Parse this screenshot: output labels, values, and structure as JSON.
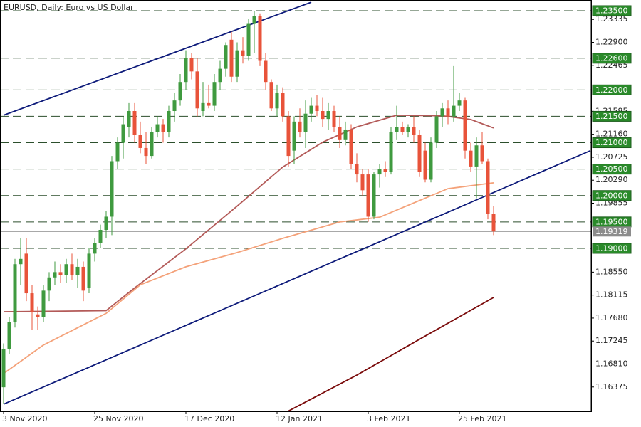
{
  "chart_data": {
    "type": "candlestick",
    "title": "EURUSD, Daily:  Euro vs US Dollar",
    "categories": [
      "3 Nov 2020",
      null,
      null,
      null,
      null,
      null,
      null,
      null,
      null,
      null,
      null,
      null,
      null,
      null,
      null,
      null,
      "25 Nov 2020",
      null,
      null,
      null,
      null,
      null,
      null,
      null,
      null,
      null,
      null,
      null,
      null,
      null,
      null,
      null,
      "17 Dec 2020",
      null,
      null,
      null,
      null,
      null,
      null,
      null,
      null,
      null,
      null,
      null,
      null,
      null,
      null,
      null,
      "12 Jan 2021",
      null,
      null,
      null,
      null,
      null,
      null,
      null,
      null,
      null,
      null,
      null,
      null,
      null,
      null,
      null,
      "3 Feb 2021",
      null,
      null,
      null,
      null,
      null,
      null,
      null,
      null,
      null,
      null,
      null,
      null,
      null,
      null,
      null,
      "25 Feb 2021",
      null,
      null,
      null,
      null,
      null,
      null
    ],
    "open": [
      1.1637,
      1.171,
      1.176,
      1.187,
      1.189,
      1.1815,
      1.1775,
      1.177,
      1.182,
      1.1845,
      1.1855,
      1.185,
      1.187,
      1.185,
      1.1865,
      1.1825,
      1.189,
      1.191,
      1.1935,
      1.196,
      1.2065,
      1.21,
      1.213,
      1.216,
      1.2115,
      1.209,
      1.2075,
      1.212,
      1.2135,
      1.212,
      1.216,
      1.218,
      1.2215,
      1.226,
      1.2235,
      1.216,
      1.2175,
      1.217,
      1.2215,
      1.224,
      1.2295,
      1.2225,
      1.2275,
      1.2265,
      1.2325,
      1.234,
      1.2255,
      1.2215,
      1.2165,
      1.2195,
      1.215,
      1.2085,
      1.214,
      1.212,
      1.2155,
      1.217,
      1.216,
      1.2145,
      1.216,
      1.213,
      1.2105,
      1.2125,
      1.206,
      1.204,
      1.204,
      1.196,
      1.204,
      1.205,
      1.2045,
      1.212,
      1.213,
      1.212,
      1.213,
      1.2115,
      1.2085,
      1.203,
      1.21,
      1.215,
      1.2165,
      1.215,
      1.217,
      1.218,
      1.2085,
      1.2055,
      1.2095,
      1.2065,
      1.1965
    ],
    "high": [
      1.172,
      1.177,
      1.188,
      1.192,
      1.192,
      1.183,
      1.179,
      1.183,
      1.1855,
      1.1875,
      1.187,
      1.188,
      1.189,
      1.188,
      1.1875,
      1.19,
      1.192,
      1.1945,
      1.197,
      1.2075,
      1.211,
      1.215,
      1.2175,
      1.2175,
      1.214,
      1.212,
      1.213,
      1.215,
      1.2145,
      1.217,
      1.2195,
      1.223,
      1.2275,
      1.227,
      1.226,
      1.2215,
      1.221,
      1.223,
      1.2255,
      1.229,
      1.231,
      1.229,
      1.23,
      1.2335,
      1.235,
      1.2345,
      1.227,
      1.222,
      1.221,
      1.2205,
      1.216,
      1.215,
      1.2165,
      1.218,
      1.2185,
      1.219,
      1.2185,
      1.2175,
      1.217,
      1.215,
      1.214,
      1.2135,
      1.208,
      1.205,
      1.205,
      1.2045,
      1.206,
      1.2065,
      1.213,
      1.217,
      1.214,
      1.2135,
      1.215,
      1.2125,
      1.21,
      1.211,
      1.216,
      1.2175,
      1.218,
      1.2245,
      1.2195,
      1.2185,
      1.21,
      1.211,
      1.212,
      1.207,
      1.198
    ],
    "low": [
      1.1605,
      1.17,
      1.175,
      1.183,
      1.18,
      1.1745,
      1.1745,
      1.176,
      1.18,
      1.183,
      1.1835,
      1.1835,
      1.184,
      1.1825,
      1.18,
      1.1815,
      1.1875,
      1.19,
      1.192,
      1.1925,
      1.205,
      1.207,
      1.211,
      1.21,
      1.208,
      1.206,
      1.207,
      1.211,
      1.21,
      1.211,
      1.214,
      1.217,
      1.22,
      1.222,
      1.215,
      1.215,
      1.2165,
      1.216,
      1.22,
      1.2225,
      1.2215,
      1.2215,
      1.225,
      1.2255,
      1.227,
      1.2245,
      1.22,
      1.216,
      1.215,
      1.214,
      1.2055,
      1.206,
      1.211,
      1.209,
      1.214,
      1.215,
      1.213,
      1.2125,
      1.212,
      1.209,
      1.2095,
      1.205,
      1.2025,
      1.2,
      1.195,
      1.1955,
      1.2015,
      1.2035,
      1.204,
      1.2105,
      1.2115,
      1.211,
      1.21,
      1.2035,
      1.2025,
      1.2025,
      1.209,
      1.213,
      1.2135,
      1.214,
      1.216,
      1.207,
      1.2045,
      1.1995,
      1.206,
      1.1955,
      1.1925
    ],
    "close": [
      1.171,
      1.176,
      1.187,
      1.188,
      1.1815,
      1.178,
      1.177,
      1.182,
      1.1845,
      1.1855,
      1.185,
      1.187,
      1.185,
      1.1865,
      1.182,
      1.189,
      1.191,
      1.1935,
      1.196,
      1.2065,
      1.21,
      1.2135,
      1.216,
      1.2115,
      1.209,
      1.2075,
      1.212,
      1.2135,
      1.212,
      1.216,
      1.218,
      1.2215,
      1.226,
      1.2235,
      1.2165,
      1.2175,
      1.217,
      1.2215,
      1.224,
      1.2285,
      1.2225,
      1.2275,
      1.2265,
      1.2325,
      1.234,
      1.2255,
      1.2215,
      1.2165,
      1.2195,
      1.215,
      1.2075,
      1.214,
      1.212,
      1.2155,
      1.217,
      1.216,
      1.2145,
      1.216,
      1.213,
      1.2105,
      1.2125,
      1.206,
      1.204,
      1.201,
      1.196,
      1.204,
      1.205,
      1.2045,
      1.212,
      1.213,
      1.212,
      1.213,
      1.2115,
      1.2045,
      1.203,
      1.21,
      1.215,
      1.2165,
      1.215,
      1.217,
      1.218,
      1.2085,
      1.2055,
      1.2095,
      1.2065,
      1.1965,
      1.1932
    ],
    "up_color": "#3f9a3f",
    "down_color": "#e8533a",
    "ylim": [
      1.15914,
      1.23702
    ],
    "yticks": [
      1.23335,
      {
        "value": 1.229,
        "label": "1.22900"
      },
      1.22465,
      1.21595,
      {
        "value": 1.2116,
        "label": "1.21160"
      },
      1.20725,
      {
        "value": 1.2029,
        "label": "1.20290"
      },
      1.19855,
      {
        "value": 1.1855,
        "label": "1.18550"
      },
      1.18115,
      {
        "value": 1.1768,
        "label": "1.17680"
      },
      1.17245,
      {
        "value": 1.1681,
        "label": "1.16810"
      },
      1.16375
    ],
    "levels": [
      {
        "value": 1.235,
        "label": "1.23500"
      },
      {
        "value": 1.226,
        "label": "1.22600"
      },
      {
        "value": 1.22,
        "label": "1.22000"
      },
      {
        "value": 1.215,
        "label": "1.21500"
      },
      {
        "value": 1.21,
        "label": "1.21000"
      },
      {
        "value": 1.205,
        "label": "1.20500"
      },
      {
        "value": 1.2,
        "label": "1.20000"
      },
      {
        "value": 1.195,
        "label": "1.19500"
      },
      {
        "value": 1.19,
        "label": "1.19000"
      }
    ],
    "level_color": "#2a8a2a",
    "current_price": 1.19319,
    "current_price_color": "#8c8c8c",
    "lines": [
      {
        "color": "#b35a58",
        "x": [
          0,
          18,
          23,
          32,
          41,
          49,
          56,
          62,
          69,
          77,
          82,
          86
        ],
        "values": [
          1.178,
          1.1782,
          1.1825,
          1.1899,
          1.198,
          1.2054,
          1.2101,
          1.213,
          1.2152,
          1.2151,
          1.2144,
          1.2128
        ]
      },
      {
        "color": "#f4a27a",
        "x": [
          0,
          7,
          18,
          24,
          32,
          41,
          49,
          59,
          66,
          72,
          78,
          86
        ],
        "values": [
          1.1663,
          1.1717,
          1.1777,
          1.1831,
          1.1865,
          1.1892,
          1.1919,
          1.195,
          1.1959,
          1.1986,
          1.2013,
          1.2024
        ]
      },
      {
        "color": "#7a0a0a",
        "x": [
          50,
          62,
          74,
          86
        ],
        "values": [
          1.1592,
          1.166,
          1.1734,
          1.1807
        ]
      },
      {
        "color": "#0d1a7a",
        "x": [
          0,
          54
        ],
        "values": [
          1.2152,
          1.2366
        ]
      },
      {
        "color": "#0d1a7a",
        "x": [
          0,
          103
        ],
        "values": [
          1.1605,
          1.2085
        ]
      }
    ]
  }
}
